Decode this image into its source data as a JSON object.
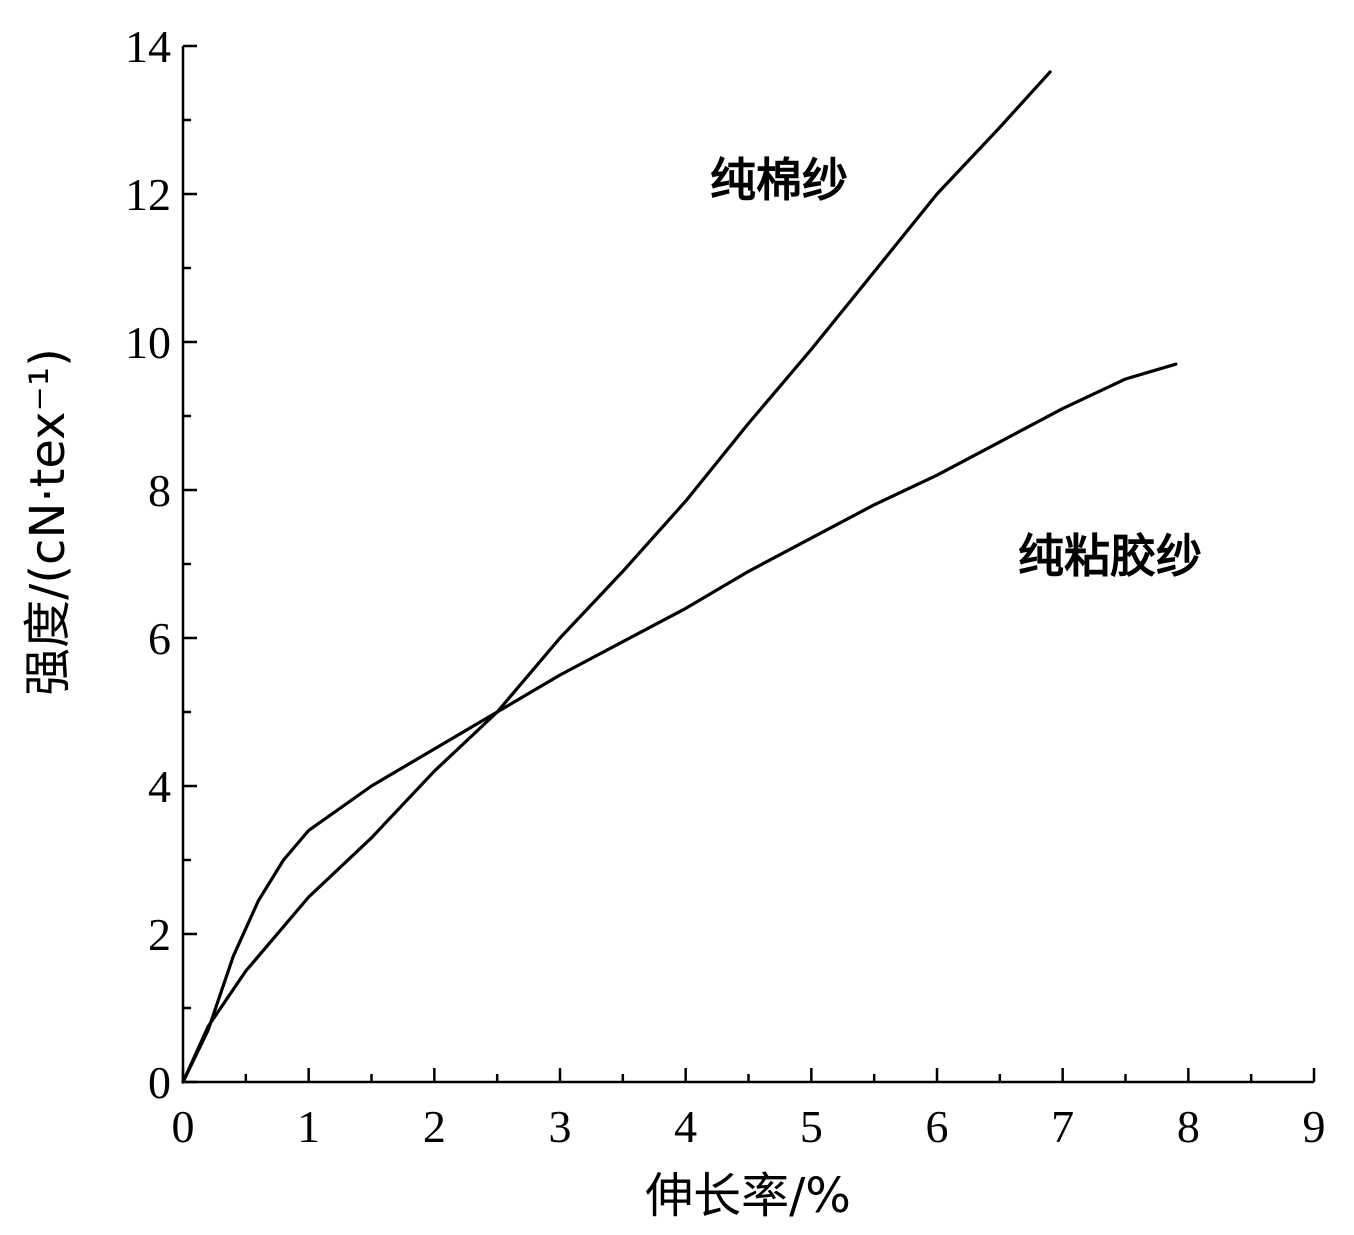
{
  "chart_data": {
    "type": "line",
    "xlabel": "伸长率/%",
    "ylabel": "强度/(cN·tex⁻¹)",
    "xlim": [
      0,
      9
    ],
    "ylim": [
      0,
      14
    ],
    "xticks": [
      0,
      1,
      2,
      3,
      4,
      5,
      6,
      7,
      8,
      9
    ],
    "yticks": [
      0,
      2,
      4,
      6,
      8,
      10,
      12,
      14
    ],
    "xtick_labels": [
      "0",
      "1",
      "2",
      "3",
      "4",
      "5",
      "6",
      "7",
      "8",
      "9"
    ],
    "ytick_labels": [
      "0",
      "2",
      "4",
      "6",
      "8",
      "10",
      "12",
      "14"
    ],
    "grid": false,
    "line_color": "#000000",
    "series": [
      {
        "name": "纯棉纱",
        "x": [
          0,
          0.2,
          0.5,
          1.0,
          1.5,
          2.0,
          2.5,
          3.0,
          3.5,
          4.0,
          4.5,
          5.0,
          5.5,
          6.0,
          6.5,
          6.9
        ],
        "y": [
          0,
          0.75,
          1.5,
          2.5,
          3.3,
          4.2,
          5.0,
          6.0,
          6.9,
          7.85,
          8.9,
          9.9,
          10.95,
          12.0,
          12.9,
          13.65
        ]
      },
      {
        "name": "纯粘胶纱",
        "x": [
          0,
          0.2,
          0.4,
          0.6,
          0.8,
          1.0,
          1.5,
          2.0,
          2.5,
          3.0,
          3.5,
          4.0,
          4.5,
          5.0,
          5.5,
          6.0,
          6.5,
          7.0,
          7.5,
          7.9
        ],
        "y": [
          0,
          0.7,
          1.7,
          2.45,
          3.0,
          3.4,
          4.0,
          4.5,
          5.0,
          5.5,
          5.95,
          6.4,
          6.9,
          7.35,
          7.8,
          8.2,
          8.65,
          9.1,
          9.5,
          9.7
        ]
      }
    ]
  },
  "annotations": {
    "cotton_label": "纯棉纱",
    "viscose_label": "纯粘胶纱"
  }
}
